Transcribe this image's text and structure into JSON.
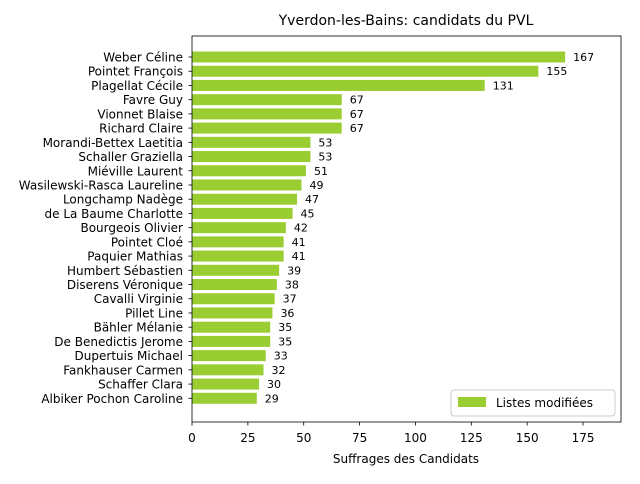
{
  "chart_data": {
    "type": "bar",
    "orientation": "horizontal",
    "title": "Yverdon-les-Bains: candidats du PVL",
    "xlabel": "Suffrages des Candidats",
    "ylabel": "",
    "xlim": [
      0,
      192
    ],
    "xticks": [
      0,
      25,
      50,
      75,
      100,
      125,
      150,
      175
    ],
    "grid": false,
    "legend_position": "lower-right",
    "bar_color": "#9acd32",
    "categories": [
      "Weber Céline",
      "Pointet François",
      "Plagellat Cécile",
      "Favre Guy",
      "Vionnet Blaise",
      "Richard Claire",
      "Morandi-Bettex Laetitia",
      "Schaller Graziella",
      "Miéville Laurent",
      "Wasilewski-Rasca Laureline",
      "Longchamp Nadège",
      "de La Baume Charlotte",
      "Bourgeois Olivier",
      "Pointet Cloé",
      "Paquier Mathias",
      "Humbert Sébastien",
      "Diserens Véronique",
      "Cavalli Virginie",
      "Pillet Line",
      "Bähler Mélanie",
      "De Benedictis Jerome",
      "Dupertuis Michael",
      "Fankhauser Carmen",
      "Schaffer Clara",
      "Albiker Pochon Caroline"
    ],
    "series": [
      {
        "name": "Listes modifiées",
        "color": "#9acd32",
        "values": [
          167,
          155,
          131,
          67,
          67,
          67,
          53,
          53,
          51,
          49,
          47,
          45,
          42,
          41,
          41,
          39,
          38,
          37,
          36,
          35,
          35,
          33,
          32,
          30,
          29
        ]
      }
    ]
  }
}
